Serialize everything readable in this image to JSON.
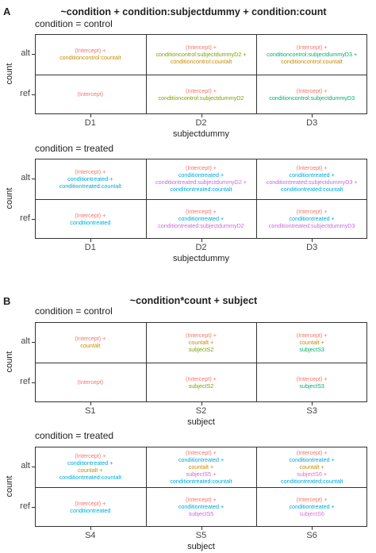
{
  "colors": {
    "intercept": "#f0766b",
    "control_main": "#c58b00",
    "subjectdummyD2": "#7aa300",
    "subjectdummyD3": "#00b070",
    "treated_main": "#00a8d6",
    "treated_interaction": "#c96ad8",
    "countalt": "#c58b00",
    "subjectS2": "#7aa300",
    "subjectS3": "#00b070",
    "subjectS5": "#c96ad8",
    "subjectS6": "#e86ad0"
  },
  "panelA": {
    "letter": "A",
    "title": "~condition + condition:subjectdummy + condition:count",
    "facets": [
      {
        "label": "condition = control",
        "xlabel": "subjectdummy",
        "ylabel": "count",
        "xticks": [
          "D1",
          "D2",
          "D3"
        ],
        "yticks": [
          "alt",
          "ref"
        ],
        "cells": [
          [
            [
              {
                "t": "(Intercept) +",
                "c": "intercept"
              },
              {
                "t": "conditioncontrol:countalt",
                "c": "control_main"
              }
            ],
            [
              {
                "t": "(Intercept) +",
                "c": "intercept"
              },
              {
                "t": "conditioncontrol:subjectdummyD2 +",
                "c": "subjectdummyD2"
              },
              {
                "t": "conditioncontrol:countalt",
                "c": "control_main"
              }
            ],
            [
              {
                "t": "(Intercept) +",
                "c": "intercept"
              },
              {
                "t": "conditioncontrol:subjectdummyD3 +",
                "c": "subjectdummyD3"
              },
              {
                "t": "conditioncontrol:countalt",
                "c": "control_main"
              }
            ]
          ],
          [
            [
              {
                "t": "(Intercept)",
                "c": "intercept"
              }
            ],
            [
              {
                "t": "(Intercept) +",
                "c": "intercept"
              },
              {
                "t": "conditioncontrol:subjectdummyD2",
                "c": "subjectdummyD2"
              }
            ],
            [
              {
                "t": "(Intercept) +",
                "c": "intercept"
              },
              {
                "t": "conditioncontrol:subjectdummyD3",
                "c": "subjectdummyD3"
              }
            ]
          ]
        ]
      },
      {
        "label": "condition = treated",
        "xlabel": "subjectdummy",
        "ylabel": "count",
        "xticks": [
          "D1",
          "D2",
          "D3"
        ],
        "yticks": [
          "alt",
          "ref"
        ],
        "cells": [
          [
            [
              {
                "t": "(Intercept) +",
                "c": "intercept"
              },
              {
                "t": "conditiontreated +",
                "c": "treated_main"
              },
              {
                "t": "conditiontreated:countalt",
                "c": "treated_main"
              }
            ],
            [
              {
                "t": "(Intercept) +",
                "c": "intercept"
              },
              {
                "t": "conditiontreated +",
                "c": "treated_main"
              },
              {
                "t": "conditiontreated:subjectdummyD2 +",
                "c": "treated_interaction"
              },
              {
                "t": "conditiontreated:countalt",
                "c": "treated_main"
              }
            ],
            [
              {
                "t": "(Intercept) +",
                "c": "intercept"
              },
              {
                "t": "conditiontreated +",
                "c": "treated_main"
              },
              {
                "t": "conditiontreated:subjectdummyD3 +",
                "c": "treated_interaction"
              },
              {
                "t": "conditiontreated:countalt",
                "c": "treated_main"
              }
            ]
          ],
          [
            [
              {
                "t": "(Intercept) +",
                "c": "intercept"
              },
              {
                "t": "conditiontreated",
                "c": "treated_main"
              }
            ],
            [
              {
                "t": "(Intercept) +",
                "c": "intercept"
              },
              {
                "t": "conditiontreated +",
                "c": "treated_main"
              },
              {
                "t": "conditiontreated:subjectdummyD2",
                "c": "treated_interaction"
              }
            ],
            [
              {
                "t": "(Intercept) +",
                "c": "intercept"
              },
              {
                "t": "conditiontreated +",
                "c": "treated_main"
              },
              {
                "t": "conditiontreated:subjectdummyD3",
                "c": "treated_interaction"
              }
            ]
          ]
        ]
      }
    ]
  },
  "panelB": {
    "letter": "B",
    "title": "~condition*count + subject",
    "facets": [
      {
        "label": "condition = control",
        "xlabel": "subject",
        "ylabel": "count",
        "xticks": [
          "S1",
          "S2",
          "S3"
        ],
        "yticks": [
          "alt",
          "ref"
        ],
        "cells": [
          [
            [
              {
                "t": "(Intercept) +",
                "c": "intercept"
              },
              {
                "t": "countalt",
                "c": "countalt"
              }
            ],
            [
              {
                "t": "(Intercept) +",
                "c": "intercept"
              },
              {
                "t": "countalt +",
                "c": "countalt"
              },
              {
                "t": "subjectS2",
                "c": "subjectS2"
              }
            ],
            [
              {
                "t": "(Intercept) +",
                "c": "intercept"
              },
              {
                "t": "countalt +",
                "c": "countalt"
              },
              {
                "t": "subjectS3",
                "c": "subjectS3"
              }
            ]
          ],
          [
            [
              {
                "t": "(Intercept)",
                "c": "intercept"
              }
            ],
            [
              {
                "t": "(Intercept) +",
                "c": "intercept"
              },
              {
                "t": "subjectS2",
                "c": "subjectS2"
              }
            ],
            [
              {
                "t": "(Intercept) +",
                "c": "intercept"
              },
              {
                "t": "subjectS3",
                "c": "subjectS3"
              }
            ]
          ]
        ]
      },
      {
        "label": "condition = treated",
        "xlabel": "subject",
        "ylabel": "count",
        "xticks": [
          "S4",
          "S5",
          "S6"
        ],
        "yticks": [
          "alt",
          "ref"
        ],
        "cells": [
          [
            [
              {
                "t": "(Intercept) +",
                "c": "intercept"
              },
              {
                "t": "conditiontreated +",
                "c": "treated_main"
              },
              {
                "t": "countalt +",
                "c": "countalt"
              },
              {
                "t": "conditiontreated:countalt",
                "c": "treated_main"
              }
            ],
            [
              {
                "t": "(Intercept) +",
                "c": "intercept"
              },
              {
                "t": "conditiontreated +",
                "c": "treated_main"
              },
              {
                "t": "countalt +",
                "c": "countalt"
              },
              {
                "t": "subjectS5 +",
                "c": "subjectS5"
              },
              {
                "t": "conditiontreated:countalt",
                "c": "treated_main"
              }
            ],
            [
              {
                "t": "(Intercept) +",
                "c": "intercept"
              },
              {
                "t": "conditiontreated +",
                "c": "treated_main"
              },
              {
                "t": "countalt +",
                "c": "countalt"
              },
              {
                "t": "subjectS6 +",
                "c": "subjectS6"
              },
              {
                "t": "conditiontreated:countalt",
                "c": "treated_main"
              }
            ]
          ],
          [
            [
              {
                "t": "(Intercept) +",
                "c": "intercept"
              },
              {
                "t": "conditiontreated",
                "c": "treated_main"
              }
            ],
            [
              {
                "t": "(Intercept) +",
                "c": "intercept"
              },
              {
                "t": "conditiontreated +",
                "c": "treated_main"
              },
              {
                "t": "subjectS5",
                "c": "subjectS5"
              }
            ],
            [
              {
                "t": "(Intercept) +",
                "c": "intercept"
              },
              {
                "t": "conditiontreated +",
                "c": "treated_main"
              },
              {
                "t": "subjectS6",
                "c": "subjectS6"
              }
            ]
          ]
        ]
      }
    ]
  }
}
